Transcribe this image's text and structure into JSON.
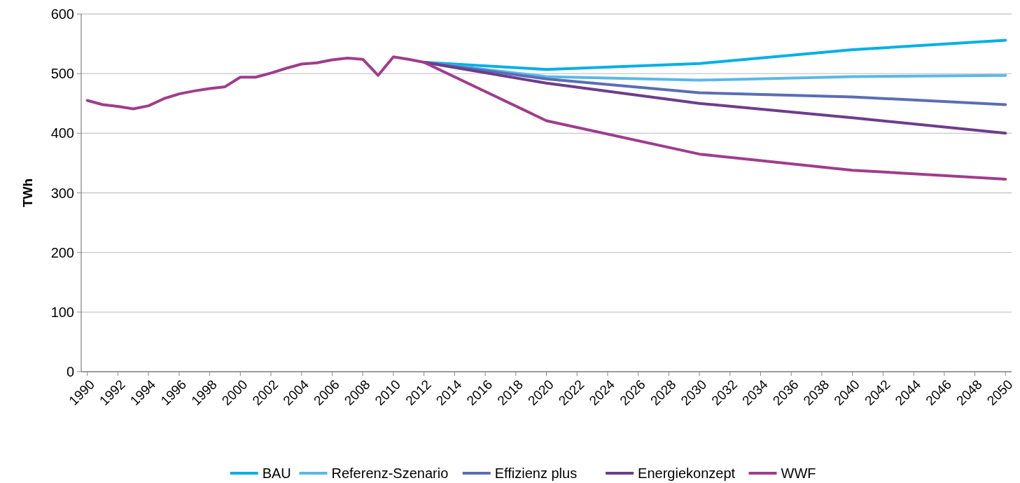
{
  "chart_data": {
    "type": "line",
    "ylabel": "TWh",
    "xlim": [
      1989.6,
      2050.4
    ],
    "ylim": [
      0,
      600
    ],
    "yticks": [
      0,
      100,
      200,
      300,
      400,
      500,
      600
    ],
    "xticks": [
      1990,
      1992,
      1994,
      1996,
      1998,
      2000,
      2002,
      2004,
      2006,
      2008,
      2010,
      2012,
      2014,
      2016,
      2018,
      2020,
      2022,
      2024,
      2026,
      2028,
      2030,
      2032,
      2034,
      2036,
      2038,
      2040,
      2042,
      2044,
      2046,
      2048,
      2050
    ],
    "grid": "y",
    "legend": "bottom",
    "marker": "none",
    "line_style": "solid",
    "series": [
      {
        "name": "BAU",
        "color": "#00b0e6",
        "x": [
          2012,
          2020,
          2030,
          2040,
          2050
        ],
        "values": [
          519,
          507,
          517,
          540,
          556
        ]
      },
      {
        "name": "Referenz-Szenario",
        "color": "#5ab9e6",
        "x": [
          2012,
          2020,
          2030,
          2040,
          2050
        ],
        "values": [
          519,
          495,
          489,
          495,
          497
        ]
      },
      {
        "name": "Effizienz plus",
        "color": "#5a6eb4",
        "x": [
          2012,
          2020,
          2030,
          2040,
          2050
        ],
        "values": [
          519,
          491,
          468,
          461,
          448
        ]
      },
      {
        "name": "Energiekonzept",
        "color": "#6e3c8c",
        "x": [
          2012,
          2020,
          2030,
          2040,
          2050
        ],
        "values": [
          519,
          484,
          450,
          426,
          400
        ]
      },
      {
        "name": "WWF",
        "color": "#a03c8c",
        "x": [
          1990,
          1991,
          1992,
          1993,
          1994,
          1995,
          1996,
          1997,
          1998,
          1999,
          2000,
          2001,
          2002,
          2003,
          2004,
          2005,
          2006,
          2007,
          2008,
          2009,
          2010,
          2011,
          2012,
          2020,
          2030,
          2040,
          2050
        ],
        "values": [
          455,
          448,
          445,
          441,
          446,
          458,
          466,
          471,
          475,
          478,
          494,
          494,
          501,
          509,
          516,
          518,
          523,
          526,
          524,
          497,
          528,
          524,
          519,
          421,
          365,
          338,
          323
        ]
      }
    ]
  }
}
